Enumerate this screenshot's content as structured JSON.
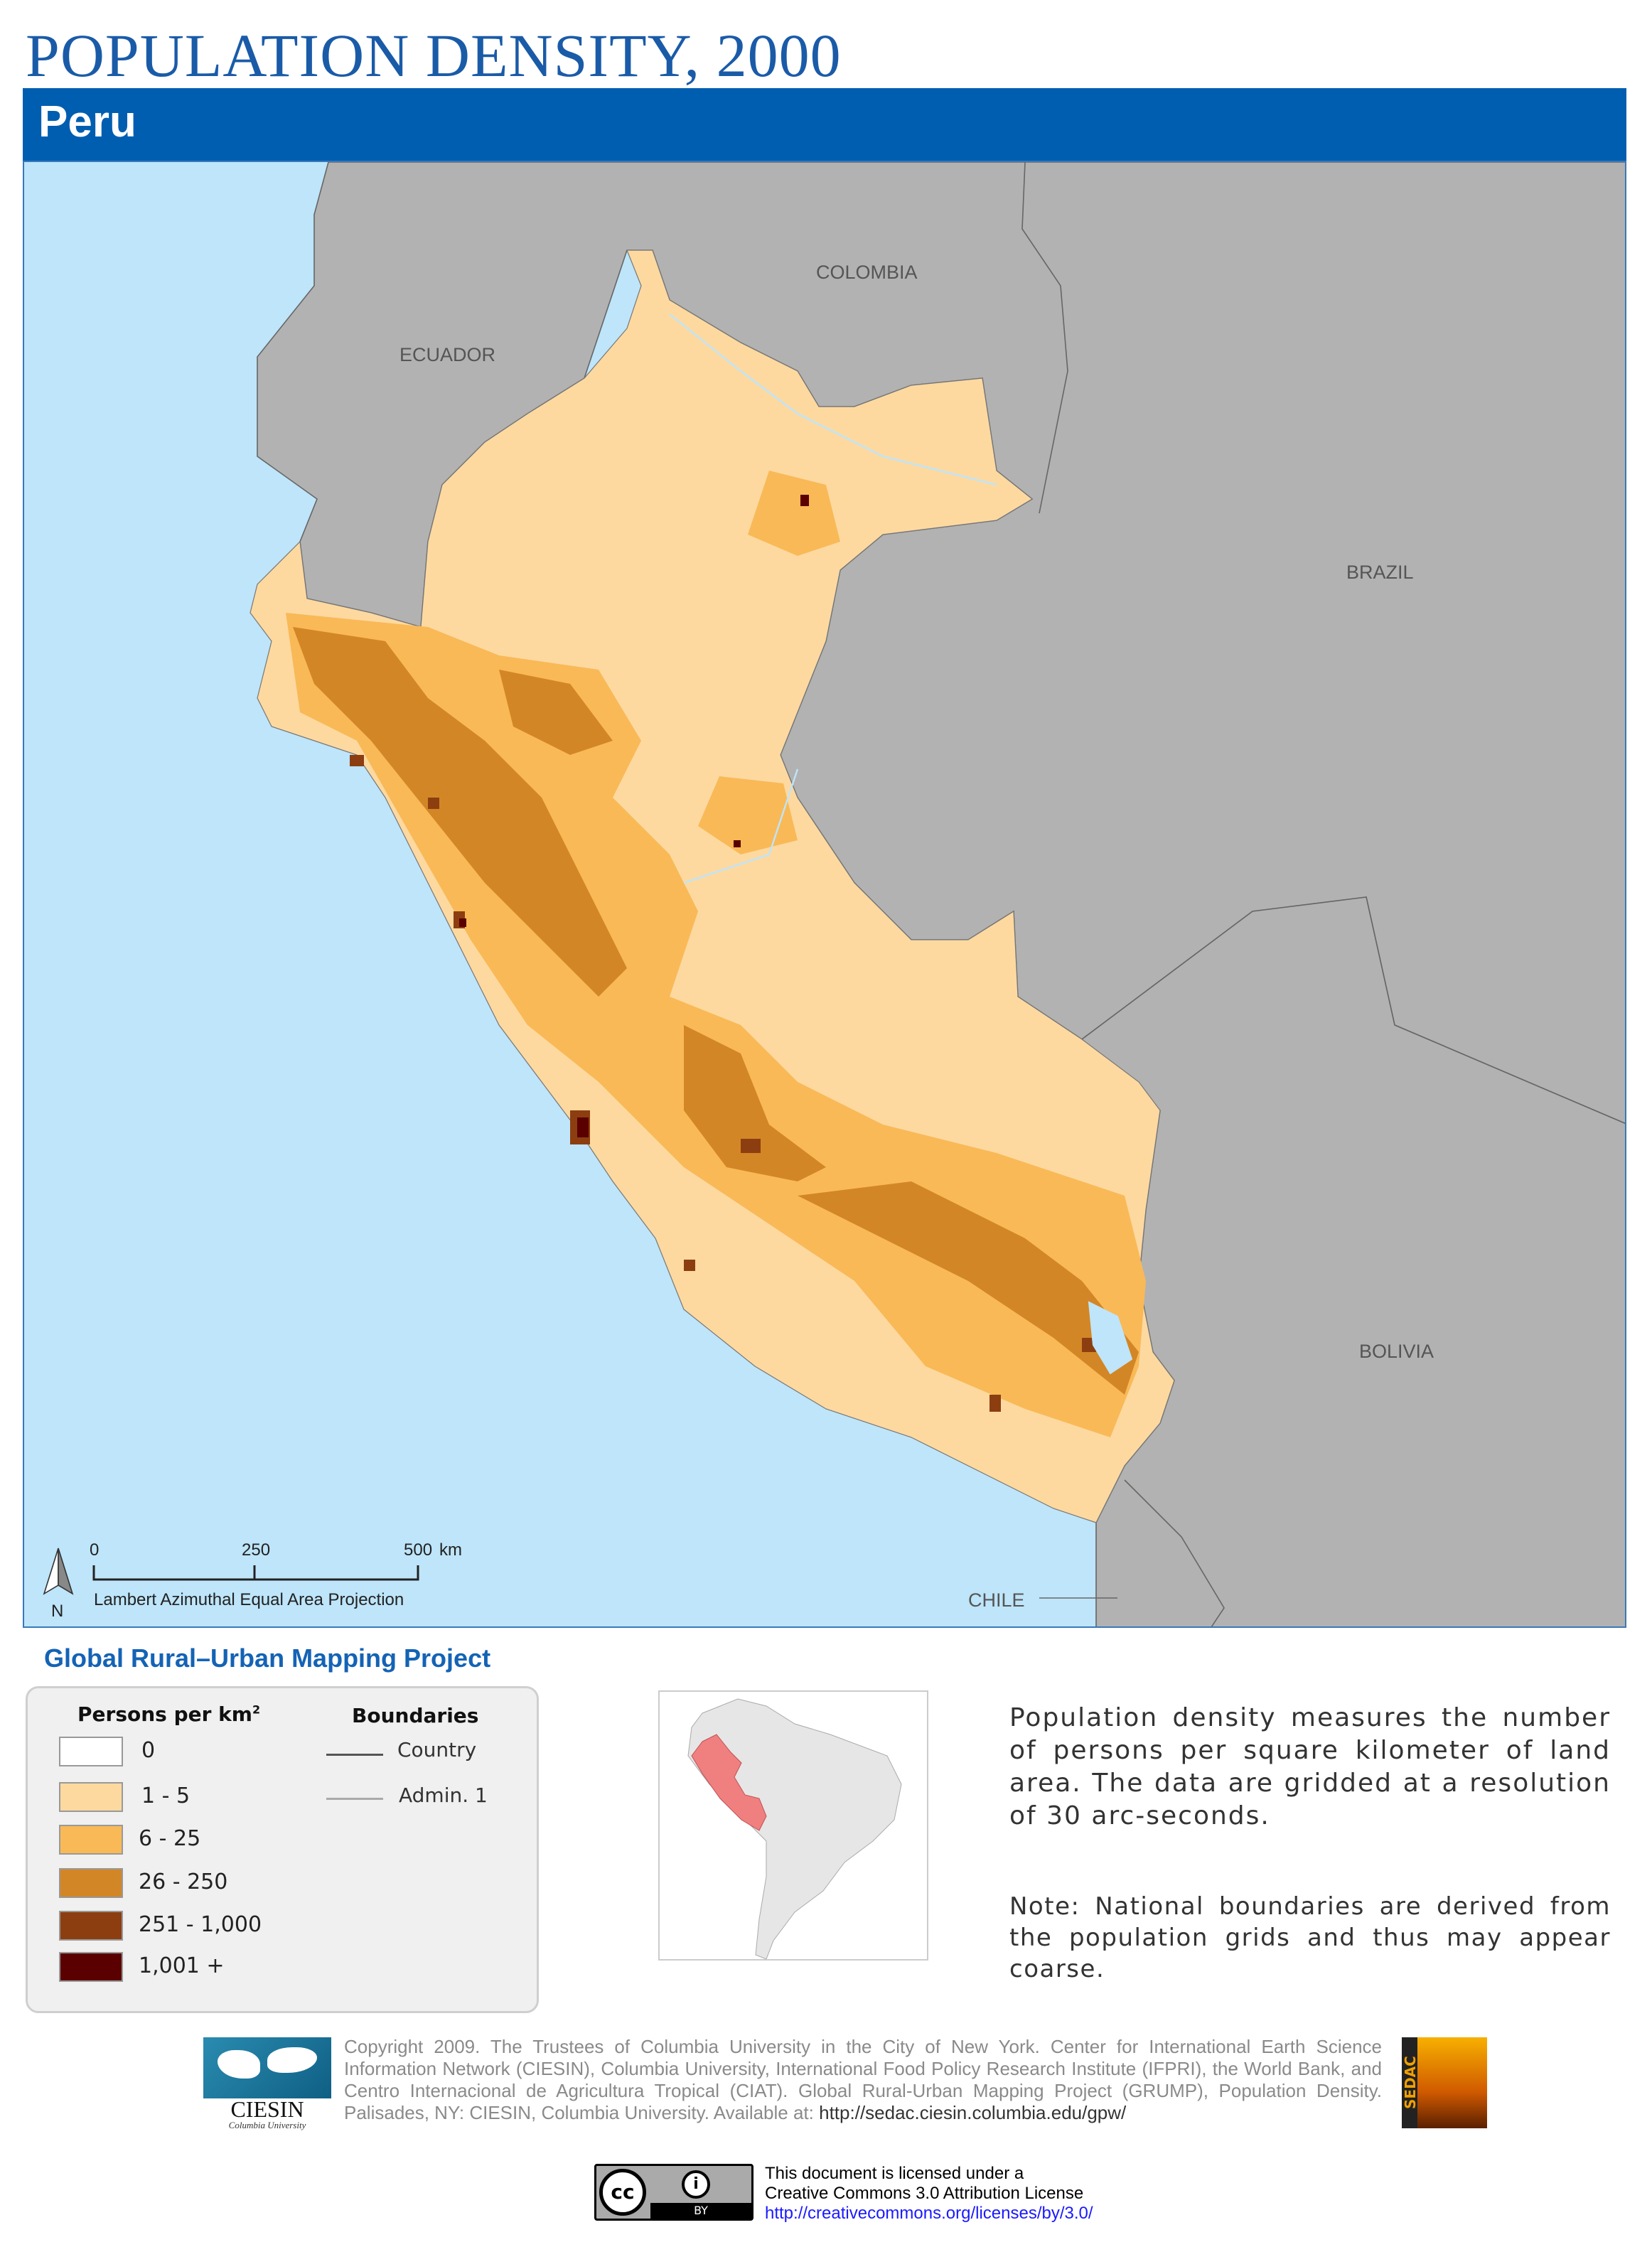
{
  "title": "POPULATION DENSITY, 2000",
  "country": "Peru",
  "map": {
    "labels": {
      "colombia": "COLOMBIA",
      "ecuador": "ECUADOR",
      "brazil": "BRAZIL",
      "bolivia": "BOLIVIA",
      "chile": "CHILE"
    },
    "scale": {
      "t0": "0",
      "t250": "250",
      "t500": "500",
      "unit": "km",
      "north": "N",
      "projection": "Lambert Azimuthal Equal Area Projection"
    },
    "colors": {
      "ocean": "#bee5fa",
      "neighbors": "#b2b2b2",
      "water": "#bee5fa"
    }
  },
  "project_title": "Global Rural–Urban Mapping Project",
  "legend": {
    "density_title": "Persons per km",
    "density_sup": "2",
    "classes": [
      {
        "label": "0",
        "color": "#ffffff"
      },
      {
        "label": "1 - 5",
        "color": "#fdd9a0"
      },
      {
        "label": "6 - 25",
        "color": "#f9b957"
      },
      {
        "label": "26 - 250",
        "color": "#d38625"
      },
      {
        "label": "251 - 1,000",
        "color": "#8c3e10"
      },
      {
        "label": "1,001 +",
        "color": "#5a0000"
      }
    ],
    "boundaries_title": "Boundaries",
    "boundaries": [
      {
        "label": "Country",
        "color": "#555555"
      },
      {
        "label": "Admin. 1",
        "color": "#aaaaaa"
      }
    ]
  },
  "inset": {
    "highlight_color": "#f08080"
  },
  "description": "Population density measures the number of persons per square kilometer of land area. The data are gridded at a resolution of 30 arc-seconds.",
  "note": "Note: National boundaries are derived from the population grids and thus may appear coarse.",
  "footer": {
    "copyright": "Copyright 2009. The Trustees of Columbia University in the City of New York. Center for International Earth Science Information Network (CIESIN), Columbia University, International Food Policy Research Institute (IFPRI), the World Bank, and Centro Internacional de Agricultura Tropical (CIAT). Global Rural-Urban Mapping Project (GRUMP), Population Density. Palisades, NY: CIESIN, Columbia University. Available at:",
    "url": "http://sedac.ciesin.columbia.edu/gpw/",
    "ciesin_logo": "CIESIN",
    "ciesin_sub": "Columbia University",
    "sedac_logo": "SEDAC",
    "license_line1": "This document is licensed under a",
    "license_line2": "Creative Commons 3.0 Attribution License",
    "license_url": "http://creativecommons.org/licenses/by/3.0/",
    "cc_by": "BY"
  }
}
